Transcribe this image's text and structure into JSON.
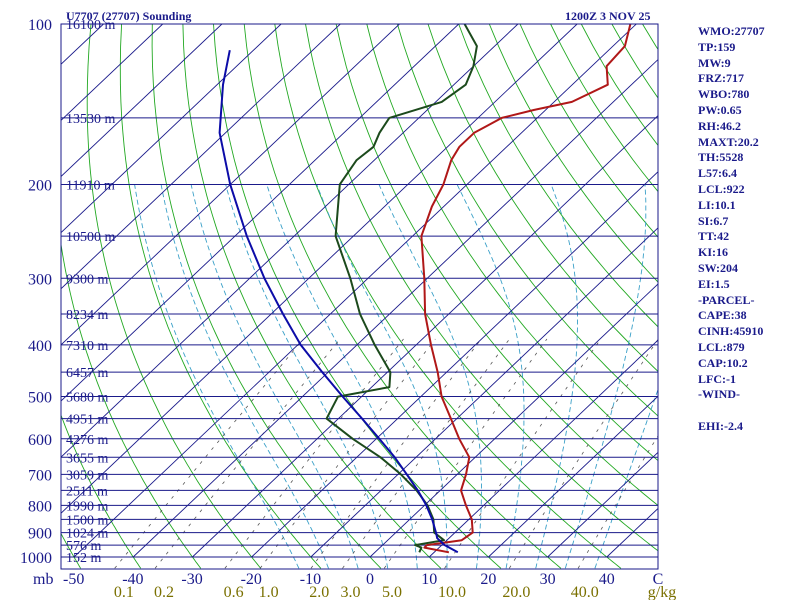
{
  "header": {
    "station": "U7707 (27707) Sounding",
    "time": "1200Z  3 NOV 25"
  },
  "colors": {
    "isobar": "#1a1a8a",
    "isotherm": "#1a1a8a",
    "dry_adiabat": "#22a822",
    "moist_adiabat": "#3aa0c8",
    "mixing_ratio": "#555555",
    "temperature": "#b01818",
    "dewpoint": "#1c4a1c",
    "parcel": "#0c0ca8",
    "axis_text": "#1a1a8a",
    "mixing_text": "#7a7000"
  },
  "indices": [
    "WMO:27707",
    "TP:159",
    "MW:9",
    "FRZ:717",
    "WBO:780",
    "PW:0.65",
    "RH:46.2",
    "MAXT:20.2",
    "TH:5528",
    "L57:6.4",
    "LCL:922",
    "LI:10.1",
    "SI:6.7",
    "TT:42",
    "KI:16",
    "SW:204",
    "EI:1.5",
    "-PARCEL-",
    "CAPE:38",
    "CINH:45910",
    "LCL:879",
    "CAP:10.2",
    "LFC:-1",
    "-WIND-",
    "",
    "EHI:-2.4"
  ],
  "chart_data": {
    "type": "line",
    "title": "U7707 (27707) Sounding",
    "subtitle": "1200Z  3 NOV 25",
    "xlabel": "mb",
    "ylabel": "",
    "x_units": "degC (skewed)",
    "xlim": [
      -50,
      50
    ],
    "ylim": [
      1000,
      100
    ],
    "pressure_ticks": [
      "100",
      "200",
      "300",
      "400",
      "500",
      "600",
      "700",
      "800",
      "900",
      "1000"
    ],
    "temperature_ticks": [
      "-50",
      "-40",
      "-30",
      "-20",
      "-10",
      "0",
      "10",
      "20",
      "30",
      "40",
      "C"
    ],
    "mixing_ratio_labels": [
      "0.1",
      "0.2",
      "0.6",
      "1.0",
      "2.0",
      "3.0",
      "5.0",
      "10.0",
      "20.0",
      "40.0",
      "g/kg"
    ],
    "mixing_ratio_values": [
      0.1,
      0.2,
      0.6,
      1.0,
      2.0,
      3.0,
      5.0,
      10.0,
      20.0,
      40.0
    ],
    "height_labels": [
      {
        "p": 100,
        "text": "16100 m"
      },
      {
        "p": 150,
        "text": "13530 m"
      },
      {
        "p": 200,
        "text": "11910 m"
      },
      {
        "p": 250,
        "text": "10500 m"
      },
      {
        "p": 300,
        "text": "9300 m"
      },
      {
        "p": 350,
        "text": "8234 m"
      },
      {
        "p": 400,
        "text": "7310 m"
      },
      {
        "p": 450,
        "text": "6457 m"
      },
      {
        "p": 500,
        "text": "5680 m"
      },
      {
        "p": 550,
        "text": "4951 m"
      },
      {
        "p": 600,
        "text": "4276 m"
      },
      {
        "p": 650,
        "text": "3655 m"
      },
      {
        "p": 700,
        "text": "3059 m"
      },
      {
        "p": 750,
        "text": "2511 m"
      },
      {
        "p": 800,
        "text": "1990 m"
      },
      {
        "p": 850,
        "text": "1500 m"
      },
      {
        "p": 900,
        "text": "1024 m"
      },
      {
        "p": 950,
        "text": "576 m"
      },
      {
        "p": 1000,
        "text": "152 m"
      }
    ],
    "series": [
      {
        "name": "Temperature",
        "points": [
          [
            980,
            12.5
          ],
          [
            960,
            7.5
          ],
          [
            950,
            7.5
          ],
          [
            930,
            12.5
          ],
          [
            900,
            13.0
          ],
          [
            850,
            10.5
          ],
          [
            800,
            7.0
          ],
          [
            750,
            3.5
          ],
          [
            700,
            1.5
          ],
          [
            650,
            -1.0
          ],
          [
            600,
            -6.0
          ],
          [
            550,
            -11.0
          ],
          [
            500,
            -16.5
          ],
          [
            450,
            -21.5
          ],
          [
            400,
            -27.5
          ],
          [
            350,
            -34.0
          ],
          [
            300,
            -40.5
          ],
          [
            250,
            -48.5
          ],
          [
            220,
            -52.0
          ],
          [
            200,
            -54.0
          ],
          [
            180,
            -57.0
          ],
          [
            170,
            -58.0
          ],
          [
            160,
            -58.0
          ],
          [
            150,
            -56.0
          ],
          [
            145,
            -52.0
          ],
          [
            140,
            -47.0
          ],
          [
            130,
            -44.0
          ],
          [
            120,
            -47.5
          ],
          [
            110,
            -48.0
          ],
          [
            100,
            -51.0
          ]
        ]
      },
      {
        "name": "Dewpoint",
        "points": [
          [
            980,
            7.5
          ],
          [
            960,
            7.0
          ],
          [
            950,
            5.5
          ],
          [
            930,
            9.5
          ],
          [
            900,
            6.5
          ],
          [
            850,
            4.0
          ],
          [
            800,
            0.5
          ],
          [
            750,
            -4.0
          ],
          [
            700,
            -9.5
          ],
          [
            650,
            -16.0
          ],
          [
            600,
            -24.0
          ],
          [
            550,
            -32.0
          ],
          [
            500,
            -34.0
          ],
          [
            480,
            -27.0
          ],
          [
            450,
            -29.5
          ],
          [
            400,
            -37.0
          ],
          [
            350,
            -45.0
          ],
          [
            300,
            -53.0
          ],
          [
            250,
            -63.0
          ],
          [
            200,
            -71.5
          ],
          [
            180,
            -73.0
          ],
          [
            170,
            -72.5
          ],
          [
            160,
            -74.0
          ],
          [
            150,
            -75.0
          ],
          [
            140,
            -69.0
          ],
          [
            130,
            -68.0
          ],
          [
            120,
            -70.0
          ],
          [
            110,
            -73.0
          ],
          [
            100,
            -79.0
          ]
        ]
      },
      {
        "name": "Parcel",
        "points": [
          [
            980,
            14.0
          ],
          [
            950,
            10.5
          ],
          [
            922,
            8.0
          ],
          [
            900,
            6.8
          ],
          [
            850,
            3.8
          ],
          [
            800,
            0.3
          ],
          [
            750,
            -3.8
          ],
          [
            700,
            -8.5
          ],
          [
            650,
            -13.6
          ],
          [
            600,
            -19.5
          ],
          [
            550,
            -26.0
          ],
          [
            500,
            -33.2
          ],
          [
            450,
            -41.0
          ],
          [
            400,
            -49.5
          ],
          [
            350,
            -58.0
          ],
          [
            300,
            -67.5
          ],
          [
            250,
            -78.0
          ],
          [
            200,
            -90.0
          ],
          [
            160,
            -101.0
          ],
          [
            130,
            -109.0
          ],
          [
            112,
            -114.0
          ]
        ]
      }
    ]
  }
}
